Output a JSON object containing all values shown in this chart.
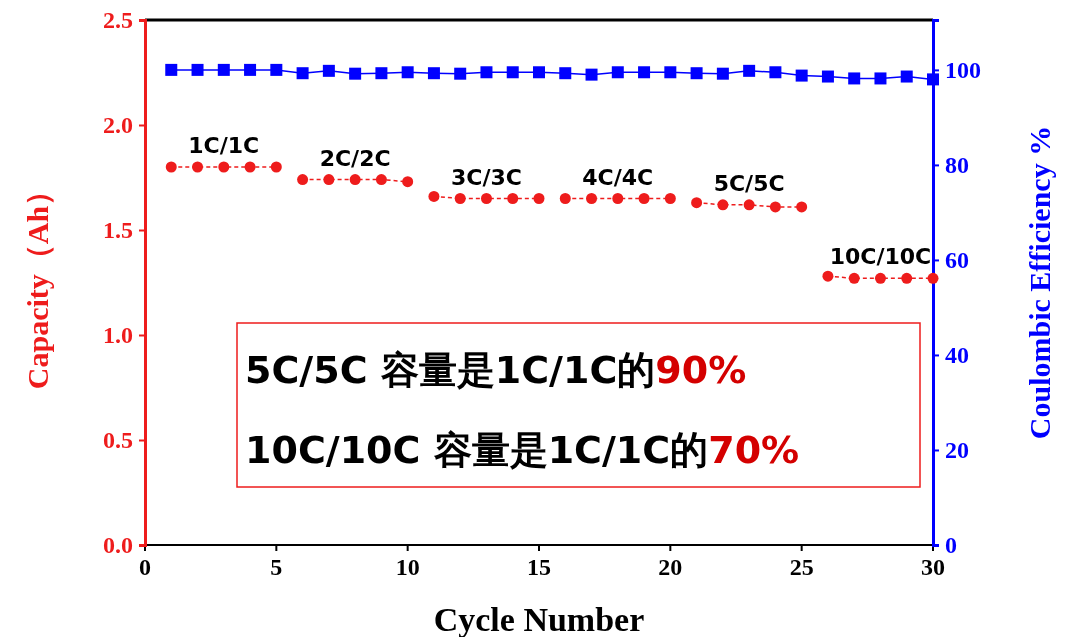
{
  "chart_data": {
    "type": "line",
    "xlabel": "Cycle Number",
    "ylabel": "Capacity（Ah）",
    "y2label": "Coulombic Efficiency %",
    "xlim": [
      0,
      30
    ],
    "xticks": [
      0,
      5,
      10,
      15,
      20,
      25,
      30
    ],
    "ylim": [
      0,
      2.5
    ],
    "yticks": [
      {
        "value": 0,
        "label": "0.0"
      },
      {
        "value": 0.5,
        "label": "0.5"
      },
      {
        "value": 1,
        "label": "1.0"
      },
      {
        "value": 1.5,
        "label": "1.5"
      },
      {
        "value": 2,
        "label": "2.0"
      },
      {
        "value": 2.5,
        "label": "2.5"
      }
    ],
    "y2lim": [
      0,
      110.5
    ],
    "y2ticks": [
      0,
      20,
      40,
      60,
      80,
      100
    ],
    "series": [
      {
        "color": "#ee1c1c",
        "marker": "circle",
        "line_style": "dashed",
        "x": [
          1,
          2,
          3,
          4,
          5
        ],
        "values": [
          1.8,
          1.8,
          1.8,
          1.8,
          1.8
        ]
      },
      {
        "color": "#ee1c1c",
        "marker": "circle",
        "line_style": "dashed",
        "x": [
          6,
          7,
          8,
          9,
          10
        ],
        "values": [
          1.74,
          1.74,
          1.74,
          1.74,
          1.73
        ]
      },
      {
        "color": "#ee1c1c",
        "marker": "circle",
        "line_style": "dashed",
        "x": [
          11,
          12,
          13,
          14,
          15
        ],
        "values": [
          1.66,
          1.65,
          1.65,
          1.65,
          1.65
        ]
      },
      {
        "color": "#ee1c1c",
        "marker": "circle",
        "line_style": "dashed",
        "x": [
          16,
          17,
          18,
          19,
          20
        ],
        "values": [
          1.65,
          1.65,
          1.65,
          1.65,
          1.65
        ]
      },
      {
        "color": "#ee1c1c",
        "marker": "circle",
        "line_style": "dashed",
        "x": [
          21,
          22,
          23,
          24,
          25
        ],
        "values": [
          1.63,
          1.62,
          1.62,
          1.61,
          1.61
        ]
      },
      {
        "color": "#ee1c1c",
        "marker": "circle",
        "line_style": "dashed",
        "x": [
          26,
          27,
          28,
          29,
          30
        ],
        "values": [
          1.28,
          1.27,
          1.27,
          1.27,
          1.27
        ]
      },
      {
        "color": "#0000ff",
        "marker": "square",
        "line_style": "solid",
        "axis": "y2",
        "x": [
          1,
          2,
          3,
          4,
          5,
          6,
          7,
          8,
          9,
          10,
          11,
          12,
          13,
          14,
          15,
          16,
          17,
          18,
          19,
          20,
          21,
          22,
          23,
          24,
          25,
          26,
          27,
          28,
          29,
          30
        ],
        "values": [
          100,
          100,
          100,
          100,
          100,
          99.3,
          99.8,
          99.2,
          99.3,
          99.5,
          99.3,
          99.2,
          99.5,
          99.5,
          99.5,
          99.3,
          99,
          99.5,
          99.5,
          99.5,
          99.3,
          99.2,
          99.8,
          99.5,
          98.8,
          98.6,
          98.2,
          98.2,
          98.6,
          98
        ]
      }
    ],
    "annotations": [
      {
        "text": "1C/1C",
        "x": 3,
        "y": 1.8
      },
      {
        "text": "2C/2C",
        "x": 8,
        "y": 1.74
      },
      {
        "text": "3C/3C",
        "x": 13,
        "y": 1.65
      },
      {
        "text": "4C/4C",
        "x": 18,
        "y": 1.65
      },
      {
        "text": "5C/5C",
        "x": 23,
        "y": 1.62
      },
      {
        "text": "10C/10C",
        "x": 28,
        "y": 1.27
      },
      "5C/5C 容量是1C/1C的90%",
      "10C/10C 容量是1C/1C的70%"
    ]
  }
}
